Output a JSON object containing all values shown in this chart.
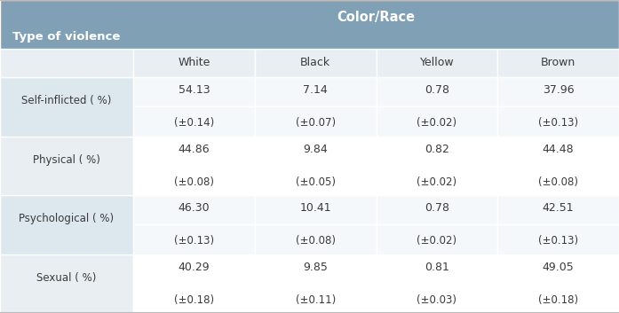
{
  "header_main_bg": "#7fa0b5",
  "header_sub_bg_left": "#e8eef1",
  "header_sub_bg_right": "#e8eef1",
  "row_label_bg_even": "#dce8ee",
  "row_label_bg_odd": "#e8eef1",
  "row_data_bg_even": "#f5f8fa",
  "row_data_bg_odd": "#ffffff",
  "header_text_color": "#ffffff",
  "label_text_color": "#3a3a3a",
  "value_text_color": "#3a3a3a",
  "col_header_text_color": "#3a3a3a",
  "col_header": [
    "White",
    "Black",
    "Yellow",
    "Brown"
  ],
  "row_labels": [
    "Self-inflicted ( %)",
    "Physical ( %)",
    "Psychological ( %)",
    "Sexual ( %)"
  ],
  "values": [
    [
      "54.13",
      "7.14",
      "0.78",
      "37.96"
    ],
    [
      "44.86",
      "9.84",
      "0.82",
      "44.48"
    ],
    [
      "46.30",
      "10.41",
      "0.78",
      "42.51"
    ],
    [
      "40.29",
      "9.85",
      "0.81",
      "49.05"
    ]
  ],
  "errors": [
    [
      "(±0.14)",
      "(±0.07)",
      "(±0.02)",
      "(±0.13)"
    ],
    [
      "(±0.08)",
      "(±0.05)",
      "(±0.02)",
      "(±0.08)"
    ],
    [
      "(±0.13)",
      "(±0.08)",
      "(±0.02)",
      "(±0.13)"
    ],
    [
      "(±0.18)",
      "(±0.11)",
      "(±0.03)",
      "(±0.18)"
    ]
  ],
  "main_header_label": "Color/Race",
  "row_header_label": "Type of violence",
  "figsize": [
    6.97,
    3.53
  ],
  "dpi": 100
}
